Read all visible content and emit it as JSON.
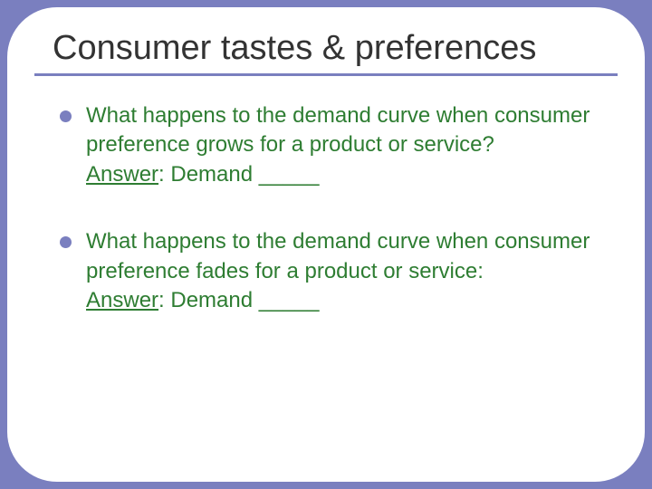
{
  "slide": {
    "background_color": "#7a7fbf",
    "panel_color": "#ffffff",
    "panel_border_radius": 55,
    "accent_color": "#7a7fbf",
    "title": "Consumer tastes & preferences",
    "title_color": "#333333",
    "title_fontsize": 38,
    "body_color": "#2e7d32",
    "body_fontsize": 24,
    "bullets": [
      {
        "question": "What happens to the demand curve when consumer preference grows for a product or service?",
        "answer_label": "Answer",
        "answer_text": ":  Demand ",
        "blank": "_____"
      },
      {
        "question": "What happens to the demand curve when consumer preference fades for a product or service:",
        "answer_label": "Answer",
        "answer_text": ": Demand ",
        "blank": "_____"
      }
    ]
  }
}
